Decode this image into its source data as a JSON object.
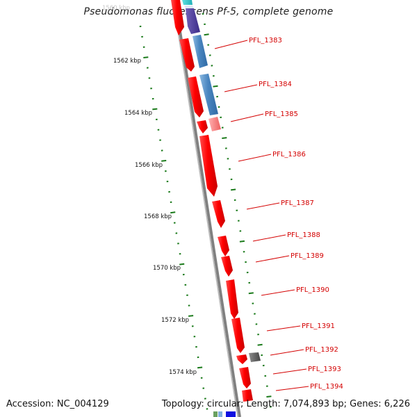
{
  "title": "Pseudomonas fluorescens Pf-5, complete genome",
  "accession": "Accession: NC_004129",
  "summary": "Topology: circular; Length: 7,074,893 bp; Genes: 6,226",
  "colors": {
    "forward": "#ff0000",
    "reverse": "#4a86c0",
    "tick": "#1a7a1a",
    "backbone": "#808080",
    "label": "#d40000"
  },
  "scale_labels": [
    {
      "kbp": 1562,
      "label": "1562 kbp"
    },
    {
      "kbp": 1564,
      "label": "1564 kbp"
    },
    {
      "kbp": 1566,
      "label": "1566 kbp"
    },
    {
      "kbp": 1568,
      "label": "1568 kbp"
    },
    {
      "kbp": 1570,
      "label": "1570 kbp"
    },
    {
      "kbp": 1572,
      "label": "1572 kbp"
    },
    {
      "kbp": 1574,
      "label": "1574 kbp"
    }
  ],
  "genes": [
    {
      "locus": "PFL_1383"
    },
    {
      "locus": "PFL_1384"
    },
    {
      "locus": "PFL_1385"
    },
    {
      "locus": "PFL_1386"
    },
    {
      "locus": "PFL_1387"
    },
    {
      "locus": "PFL_1388"
    },
    {
      "locus": "PFL_1389"
    },
    {
      "locus": "PFL_1390"
    },
    {
      "locus": "PFL_1391"
    },
    {
      "locus": "PFL_1392"
    },
    {
      "locus": "PFL_1393"
    },
    {
      "locus": "PFL_1394"
    }
  ]
}
